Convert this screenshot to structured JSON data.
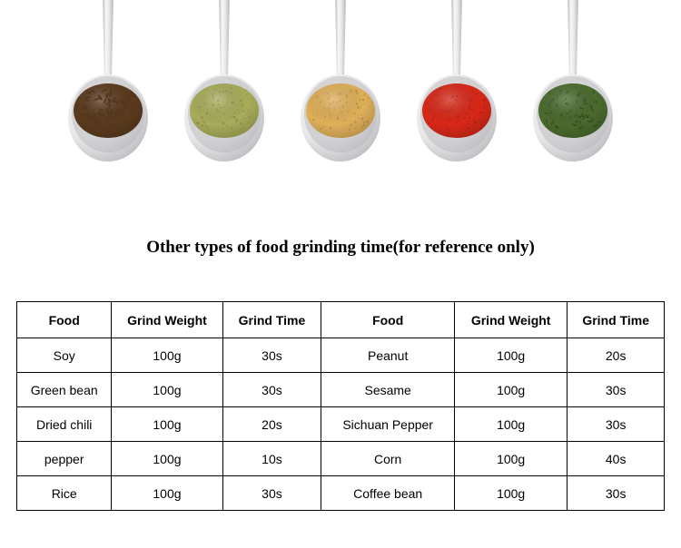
{
  "title": "Other types of food grinding time(for reference only)",
  "spoons": [
    {
      "content_color": "#5b3b1e",
      "content_type": "seeds"
    },
    {
      "content_color": "#a8ad5a",
      "content_type": "powder"
    },
    {
      "content_color": "#e0b05a",
      "content_type": "powder"
    },
    {
      "content_color": "#d82818",
      "content_type": "powder"
    },
    {
      "content_color": "#4a6b2e",
      "content_type": "flakes"
    }
  ],
  "columns": [
    "Food",
    "Grind Weight",
    "Grind Time",
    "Food",
    "Grind Weight",
    "Grind Time"
  ],
  "rows": [
    [
      "Soy",
      "100g",
      "30s",
      "Peanut",
      "100g",
      "20s"
    ],
    [
      "Green bean",
      "100g",
      "30s",
      "Sesame",
      "100g",
      "30s"
    ],
    [
      "Dried chili",
      "100g",
      "20s",
      "Sichuan Pepper",
      "100g",
      "30s"
    ],
    [
      "pepper",
      "100g",
      "10s",
      "Corn",
      "100g",
      "40s"
    ],
    [
      "Rice",
      "100g",
      "30s",
      "Coffee bean",
      "100g",
      "30s"
    ]
  ],
  "spoon_metal_light": "#e8e8ea",
  "spoon_metal_dark": "#b8b8bc",
  "spoon_metal_highlight": "#f8f8fa"
}
